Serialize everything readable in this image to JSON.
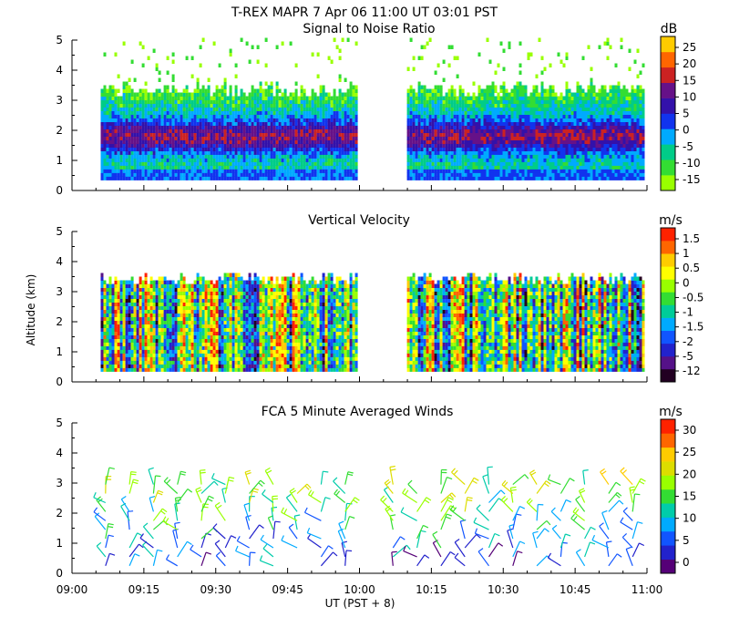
{
  "figure_title": "T-REX  MAPR  7 Apr 06  11:00 UT  03:01  PST",
  "x_axis": {
    "label": "UT  (PST + 8)",
    "tick_labels": [
      "09:00",
      "09:15",
      "09:30",
      "09:45",
      "10:00",
      "10:15",
      "10:30",
      "10:45",
      "11:00"
    ]
  },
  "y_axis": {
    "label": "Altitude (km)",
    "tick_labels": [
      "0",
      "1",
      "2",
      "3",
      "4",
      "5"
    ]
  },
  "colors": {
    "snr": [
      "#99ff00",
      "#33dd33",
      "#00cc88",
      "#00aaff",
      "#1133ee",
      "#3311aa",
      "#661188",
      "#cc2222",
      "#ff6600",
      "#ffcc00"
    ],
    "velocity": [
      "#220022",
      "#551188",
      "#2222cc",
      "#1155ff",
      "#00aaff",
      "#00cc99",
      "#33dd33",
      "#99ff00",
      "#ffff00",
      "#ffcc00",
      "#ff6600",
      "#ff2200"
    ],
    "wind": [
      "#550077",
      "#2222cc",
      "#1155ff",
      "#00aaff",
      "#00ccaa",
      "#33dd33",
      "#99ff00",
      "#dddd00",
      "#ffcc00",
      "#ff6600",
      "#ff2200"
    ]
  },
  "chart_data": [
    {
      "type": "heatmap",
      "title": "Signal to Noise Ratio",
      "unit": "dB",
      "colorbar_ticks": [
        "25",
        "20",
        "15",
        "10",
        "5",
        "0",
        "-5",
        "-10",
        "-15"
      ],
      "x_range": [
        "09:00",
        "11:00"
      ],
      "y_range": [
        0,
        5
      ],
      "data_gap": [
        "10:00",
        "10:05"
      ],
      "approx_signal_top_km": 3.3,
      "features": "Strongest returns 1-2.5 km; noise speckle up to 5 km"
    },
    {
      "type": "heatmap",
      "title": "Vertical Velocity",
      "unit": "m/s",
      "colorbar_ticks": [
        "1.5",
        "1",
        "0.5",
        "0",
        "-0.5",
        "-1",
        "-1.5",
        "-2",
        "-5",
        "-12"
      ],
      "x_range": [
        "09:00",
        "11:00"
      ],
      "y_range": [
        0,
        5
      ],
      "data_gap": [
        "10:00",
        "10:05"
      ],
      "approx_signal_top_km": 3.4
    },
    {
      "type": "scatter",
      "title": "FCA 5 Minute Averaged Winds",
      "unit": "m/s",
      "colorbar_ticks": [
        "30",
        "25",
        "20",
        "15",
        "10",
        "5",
        "0"
      ],
      "x_range": [
        "09:00",
        "11:00"
      ],
      "y_range": [
        0,
        5
      ],
      "plot_style": "wind barbs",
      "barb_times": [
        "09:07",
        "09:12",
        "09:17",
        "09:22",
        "09:27",
        "09:32",
        "09:37",
        "09:42",
        "09:47",
        "09:52",
        "09:57",
        "10:07",
        "10:12",
        "10:17",
        "10:22",
        "10:27",
        "10:32",
        "10:37",
        "10:42",
        "10:47",
        "10:52",
        "10:57"
      ],
      "barb_altitudes_km": [
        0.25,
        0.55,
        0.85,
        1.15,
        1.45,
        1.75,
        2.05,
        2.35,
        2.65,
        2.95
      ]
    }
  ]
}
